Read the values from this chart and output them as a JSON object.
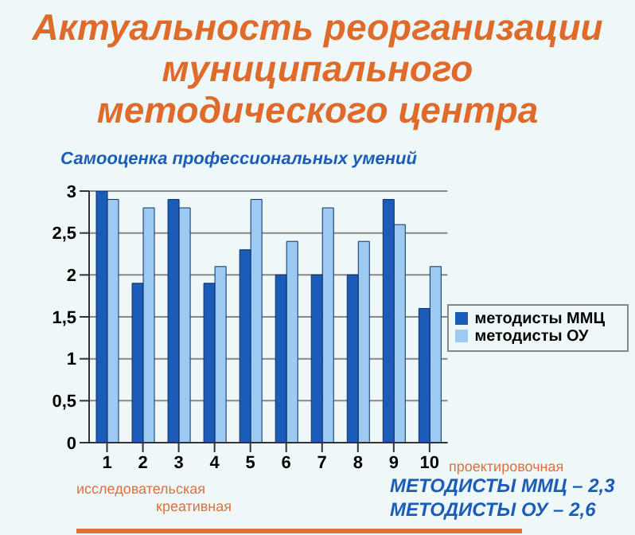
{
  "chart_data": {
    "type": "bar",
    "title": "Актуальность реорганизации муниципального методического центра",
    "subtitle": "Самооценка профессиональных умений",
    "categories": [
      "1",
      "2",
      "3",
      "4",
      "5",
      "6",
      "7",
      "8",
      "9",
      "10"
    ],
    "series": [
      {
        "name": "методисты ММЦ",
        "color": "#1a5cb8",
        "values": [
          3,
          1.9,
          2.9,
          1.9,
          2.3,
          2,
          2,
          2,
          2.9,
          1.6
        ]
      },
      {
        "name": "методисты ОУ",
        "color": "#9ccaf2",
        "values": [
          2.9,
          2.8,
          2.8,
          2.1,
          2.9,
          2.4,
          2.8,
          2.4,
          2.6,
          2.1
        ]
      }
    ],
    "ylim": [
      0,
      3
    ],
    "yticks": [
      0,
      {
        "value": 0.5,
        "label": "0,5"
      },
      1,
      {
        "value": 1.5,
        "label": "1,5"
      },
      2,
      {
        "value": 2.5,
        "label": "2,5"
      },
      3
    ],
    "grid": "y",
    "legend": "right",
    "annotations": [
      "проектировочная",
      "исследовательская",
      "креативная",
      "МЕТОДИСТЫ ММЦ – 2,3",
      "МЕТОДИСТЫ ОУ – 2,6"
    ]
  }
}
